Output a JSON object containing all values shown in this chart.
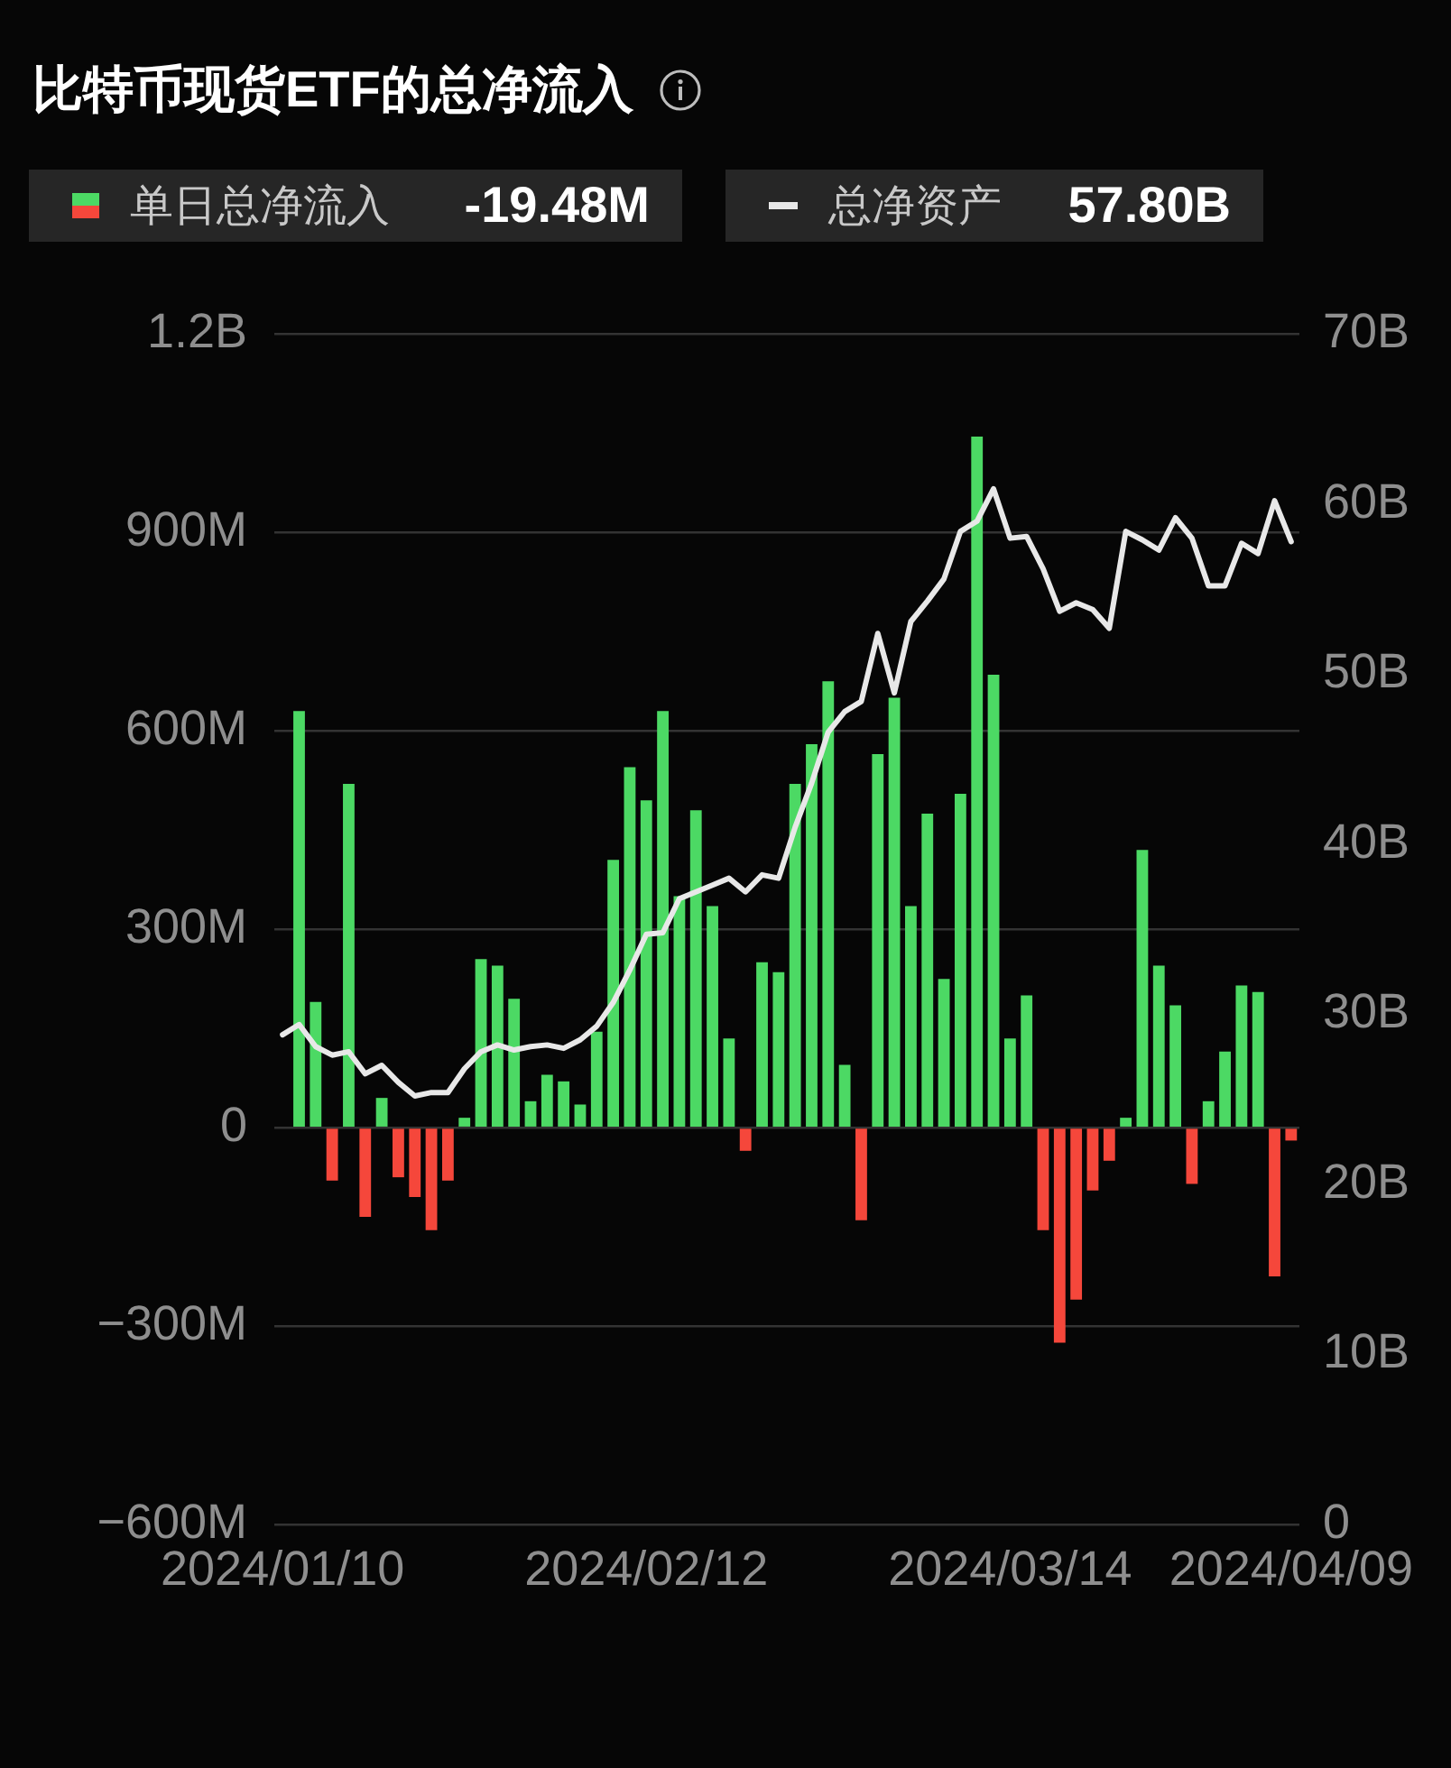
{
  "chart_data": {
    "type": "bar",
    "title": "比特币现货ETF的总净流入",
    "categories": [
      "2024/01/10",
      null,
      null,
      null,
      null,
      null,
      null,
      null,
      null,
      null,
      null,
      null,
      null,
      null,
      null,
      null,
      null,
      null,
      null,
      null,
      null,
      null,
      "2024/02/12",
      null,
      null,
      null,
      null,
      null,
      null,
      null,
      null,
      null,
      null,
      null,
      null,
      null,
      null,
      null,
      null,
      null,
      null,
      null,
      null,
      null,
      "2024/03/14",
      null,
      null,
      null,
      null,
      null,
      null,
      null,
      null,
      null,
      null,
      null,
      null,
      null,
      null,
      null,
      null,
      "2024/04/09"
    ],
    "series": [
      {
        "name": "单日总净流入",
        "values": [
          null,
          630000000,
          190000000,
          -80000000,
          520000000,
          -135000000,
          45000000,
          -75000000,
          -105000000,
          -155000000,
          -80000000,
          15000000,
          255000000,
          245000000,
          195000000,
          40000000,
          80000000,
          70000000,
          35000000,
          145000000,
          405000000,
          545000000,
          495000000,
          630000000,
          350000000,
          480000000,
          335000000,
          135000000,
          -35000000,
          250000000,
          235000000,
          520000000,
          580000000,
          675000000,
          95000000,
          -140000000,
          565000000,
          650000000,
          335000000,
          475000000,
          225000000,
          505000000,
          1045000000,
          685000000,
          135000000,
          200000000,
          -155000000,
          -325000000,
          -260000000,
          -95000000,
          -50000000,
          15000000,
          420000000,
          245000000,
          185000000,
          -85000000,
          40000000,
          115000000,
          215000000,
          205000000,
          -225000000,
          -19480000
        ],
        "colors": [
          "#4cd964",
          "#4cd964",
          "#4cd964",
          "#f5473b",
          "#4cd964",
          "#f5473b",
          "#4cd964",
          "#f5473b",
          "#f5473b",
          "#f5473b",
          "#f5473b",
          "#4cd964",
          "#4cd964",
          "#4cd964",
          "#4cd964",
          "#4cd964",
          "#4cd964",
          "#4cd964",
          "#4cd964",
          "#4cd964",
          "#4cd964",
          "#4cd964",
          "#4cd964",
          "#4cd964",
          "#4cd964",
          "#4cd964",
          "#4cd964",
          "#4cd964",
          "#f5473b",
          "#4cd964",
          "#4cd964",
          "#4cd964",
          "#4cd964",
          "#4cd964",
          "#4cd964",
          "#f5473b",
          "#4cd964",
          "#4cd964",
          "#4cd964",
          "#4cd964",
          "#4cd964",
          "#4cd964",
          "#4cd964",
          "#4cd964",
          "#4cd964",
          "#4cd964",
          "#f5473b",
          "#f5473b",
          "#f5473b",
          "#f5473b",
          "#f5473b",
          "#4cd964",
          "#4cd964",
          "#4cd964",
          "#4cd964",
          "#f5473b",
          "#4cd964",
          "#4cd964",
          "#4cd964",
          "#4cd964",
          "#f5473b",
          "#f5473b"
        ]
      },
      {
        "name": "总净资产",
        "type": "line",
        "axis": "y2",
        "color": "#e8e8e8",
        "values": [
          28.8,
          29.4,
          28.1,
          27.6,
          27.8,
          26.5,
          27.0,
          26.0,
          25.2,
          25.4,
          25.4,
          26.8,
          27.8,
          28.2,
          27.9,
          28.1,
          28.2,
          28.0,
          28.5,
          29.3,
          30.7,
          32.6,
          34.7,
          34.8,
          36.8,
          37.2,
          37.6,
          38.0,
          37.2,
          38.2,
          38.0,
          41.0,
          43.6,
          46.6,
          47.8,
          48.4,
          52.4,
          48.9,
          53.1,
          54.3,
          55.6,
          58.4,
          59.0,
          60.9,
          58.0,
          58.1,
          56.2,
          53.7,
          54.2,
          53.8,
          52.7,
          58.4,
          57.9,
          57.3,
          59.2,
          58.0,
          55.2,
          55.2,
          57.7,
          57.1,
          60.2,
          57.8
        ]
      }
    ],
    "ylim": [
      -600000000,
      1200000000
    ],
    "yticks": [
      {
        "value": -600000000,
        "label": "−600M"
      },
      {
        "value": -300000000,
        "label": "−300M"
      },
      0,
      {
        "value": 300000000,
        "label": "300M"
      },
      {
        "value": 600000000,
        "label": "600M"
      },
      {
        "value": 900000000,
        "label": "900M"
      },
      {
        "value": 1200000000,
        "label": "1.2B"
      }
    ],
    "y2lim": [
      0,
      70
    ],
    "y2ticks": [
      0,
      {
        "value": 10,
        "label": "10B"
      },
      {
        "value": 20,
        "label": "20B"
      },
      {
        "value": 30,
        "label": "30B"
      },
      {
        "value": 40,
        "label": "40B"
      },
      {
        "value": 50,
        "label": "50B"
      },
      {
        "value": 60,
        "label": "60B"
      },
      {
        "value": 70,
        "label": "70B"
      }
    ],
    "grid": "y",
    "legend": "top left",
    "marker": "none",
    "annotations": [
      "-19.48M",
      "57.80B"
    ]
  }
}
